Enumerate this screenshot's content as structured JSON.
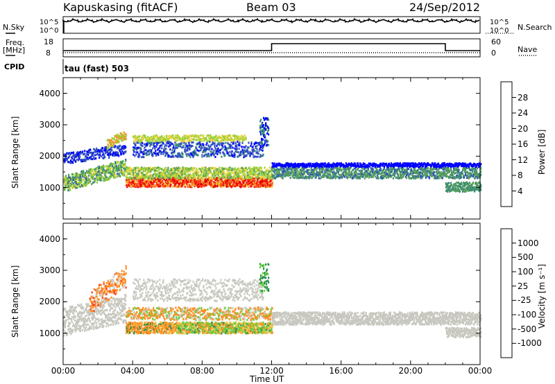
{
  "header": {
    "station": "Kapuskasing (fitACF)",
    "beam": "Beam 03",
    "date": "24/Sep/2012"
  },
  "panels": {
    "nsky_label": "N.Sky",
    "nsky_ticks": [
      "10^5",
      "10^0"
    ],
    "nsearch_label": "N.Search",
    "nsearch_ticks": [
      "10^5",
      "10^0"
    ],
    "freq_label": "Freq.",
    "freq_unit": "[MHz]",
    "freq_ticks": [
      "18",
      "8"
    ],
    "nave_label": "Nave",
    "nave_ticks": [
      "60",
      "0"
    ],
    "cpid_label": "CPID",
    "cpid_value": "tau (fast) 503"
  },
  "colors": {
    "power_scale": [
      "#0000ff",
      "#3050c0",
      "#3c8c78",
      "#5aa05a",
      "#96d23c",
      "#f0d23c",
      "#ff8c28",
      "#ff3c1e",
      "#e60000"
    ],
    "velocity_scale": [
      "#0000c8",
      "#1e78c8",
      "#288c50",
      "#64d23c",
      "#c8c8c0",
      "#f0c850",
      "#ff8c1e",
      "#ff3c1e",
      "#e60000"
    ],
    "gray_data": "#c8c8c0"
  },
  "chart_data": [
    {
      "type": "heatmap",
      "title": "Power",
      "ylabel": "Slant Range [km]",
      "xlabel": "Time UT",
      "x_ticks": [
        "00:00",
        "04:00",
        "08:00",
        "12:00",
        "16:00",
        "20:00",
        "00:00"
      ],
      "y_ticks": [
        "1000",
        "2000",
        "3000",
        "4000"
      ],
      "ylim": [
        0,
        4500
      ],
      "xlim_hours": [
        0,
        24
      ],
      "colorbar_label": "Power [dB]",
      "colorbar_ticks": [
        "4",
        "8",
        "12",
        "16",
        "20",
        "24",
        "28"
      ],
      "colorbar_range": [
        0,
        32
      ]
    },
    {
      "type": "heatmap",
      "title": "Velocity",
      "ylabel": "Slant Range [km]",
      "xlabel": "Time UT",
      "x_ticks": [
        "00:00",
        "04:00",
        "08:00",
        "12:00",
        "16:00",
        "20:00",
        "00:00"
      ],
      "y_ticks": [
        "1000",
        "2000",
        "3000",
        "4000"
      ],
      "ylim": [
        0,
        4500
      ],
      "xlim_hours": [
        0,
        24
      ],
      "colorbar_label": "Velocity [m s⁻¹]",
      "colorbar_ticks": [
        "1000",
        "500",
        "100",
        "25",
        "-25",
        "-100",
        "-500",
        "-1000"
      ]
    }
  ],
  "axis": {
    "xlabel": "Time UT"
  }
}
